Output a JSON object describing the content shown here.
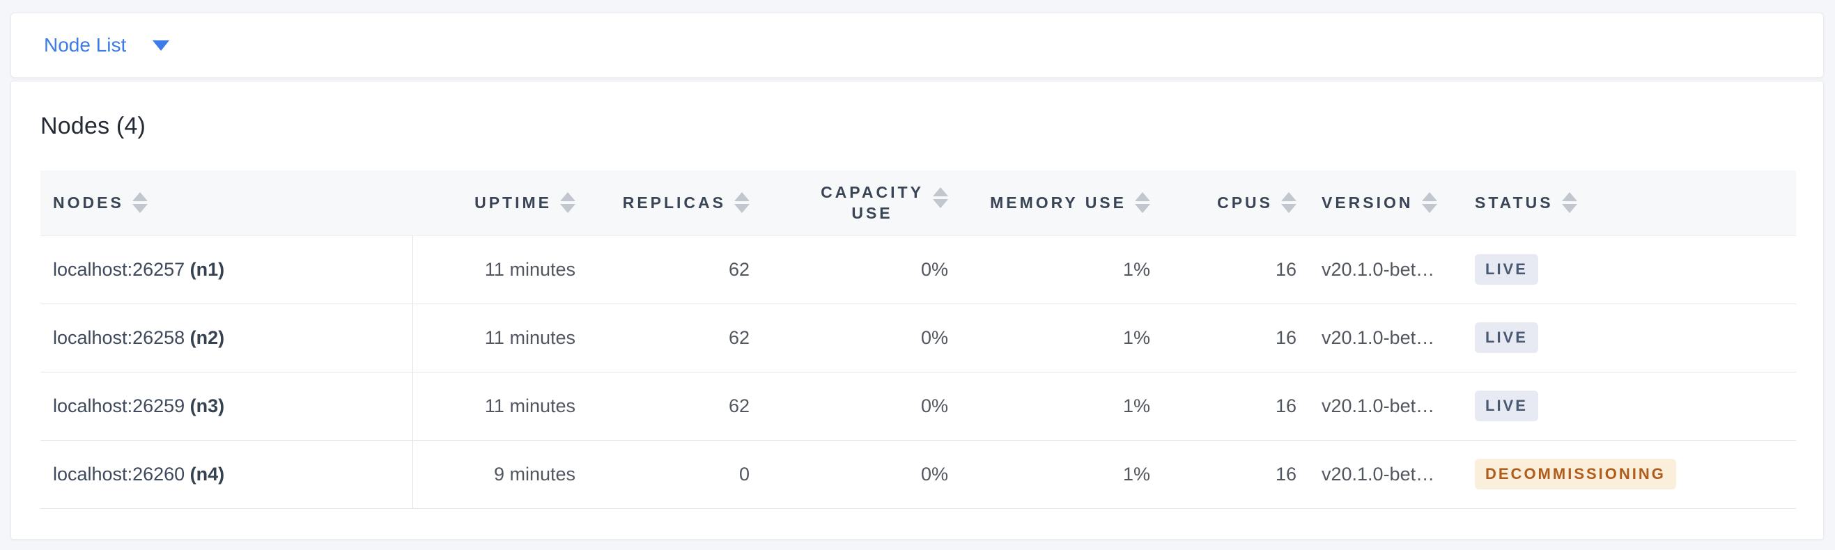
{
  "view_selector": {
    "label": "Node List",
    "icon": "caret-down-icon"
  },
  "summary": {
    "title": "Nodes (4)"
  },
  "table": {
    "columns": [
      {
        "key": "node",
        "label": "Nodes",
        "sortable": true
      },
      {
        "key": "uptime",
        "label": "Uptime",
        "sortable": true
      },
      {
        "key": "replicas",
        "label": "Replicas",
        "sortable": true
      },
      {
        "key": "capacity_use",
        "label": "Capacity Use",
        "sortable": true
      },
      {
        "key": "memory_use",
        "label": "Memory Use",
        "sortable": true
      },
      {
        "key": "cpus",
        "label": "CPUs",
        "sortable": true
      },
      {
        "key": "version",
        "label": "Version",
        "sortable": true
      },
      {
        "key": "status",
        "label": "Status",
        "sortable": true
      }
    ],
    "rows": [
      {
        "address": "localhost:26257",
        "node_id": "(n1)",
        "uptime": "11 minutes",
        "replicas": "62",
        "capacity_use": "0%",
        "memory_use": "1%",
        "cpus": "16",
        "version": "v20.1.0-bet…",
        "status": {
          "label": "LIVE",
          "type": "live"
        }
      },
      {
        "address": "localhost:26258",
        "node_id": "(n2)",
        "uptime": "11 minutes",
        "replicas": "62",
        "capacity_use": "0%",
        "memory_use": "1%",
        "cpus": "16",
        "version": "v20.1.0-bet…",
        "status": {
          "label": "LIVE",
          "type": "live"
        }
      },
      {
        "address": "localhost:26259",
        "node_id": "(n3)",
        "uptime": "11 minutes",
        "replicas": "62",
        "capacity_use": "0%",
        "memory_use": "1%",
        "cpus": "16",
        "version": "v20.1.0-bet…",
        "status": {
          "label": "LIVE",
          "type": "live"
        }
      },
      {
        "address": "localhost:26260",
        "node_id": "(n4)",
        "uptime": "9 minutes",
        "replicas": "0",
        "capacity_use": "0%",
        "memory_use": "1%",
        "cpus": "16",
        "version": "v20.1.0-bet…",
        "status": {
          "label": "DECOMMISSIONING",
          "type": "decommissioning"
        }
      }
    ]
  },
  "colors": {
    "accent": "#3b7ce8",
    "page_bg": "#f5f6fa",
    "live_badge_bg": "#e7eaf3",
    "live_badge_fg": "#475872",
    "warning_badge_bg": "#faefdb",
    "warning_badge_fg": "#b05c1c"
  }
}
